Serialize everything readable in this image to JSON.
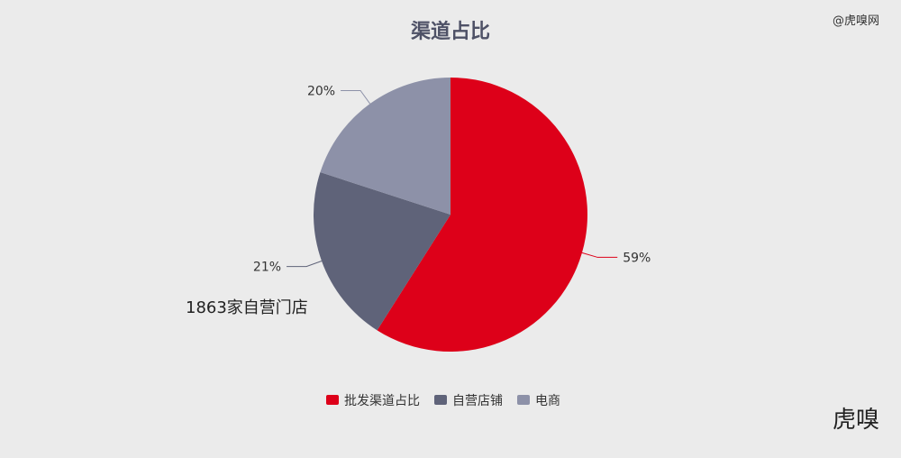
{
  "watermark": {
    "top_right": "@虎嗅网",
    "logo": "虎嗅"
  },
  "annotation": "1863家自营门店",
  "chart_data": {
    "type": "pie",
    "title": "渠道占比",
    "slices": [
      {
        "name": "批发渠道占比",
        "value": 59,
        "label": "59%",
        "color": "#dd0019"
      },
      {
        "name": "自营店铺",
        "value": 21,
        "label": "21%",
        "color": "#5f6379"
      },
      {
        "name": "电商",
        "value": 20,
        "label": "20%",
        "color": "#8d91a8"
      }
    ],
    "legend_position": "bottom"
  }
}
